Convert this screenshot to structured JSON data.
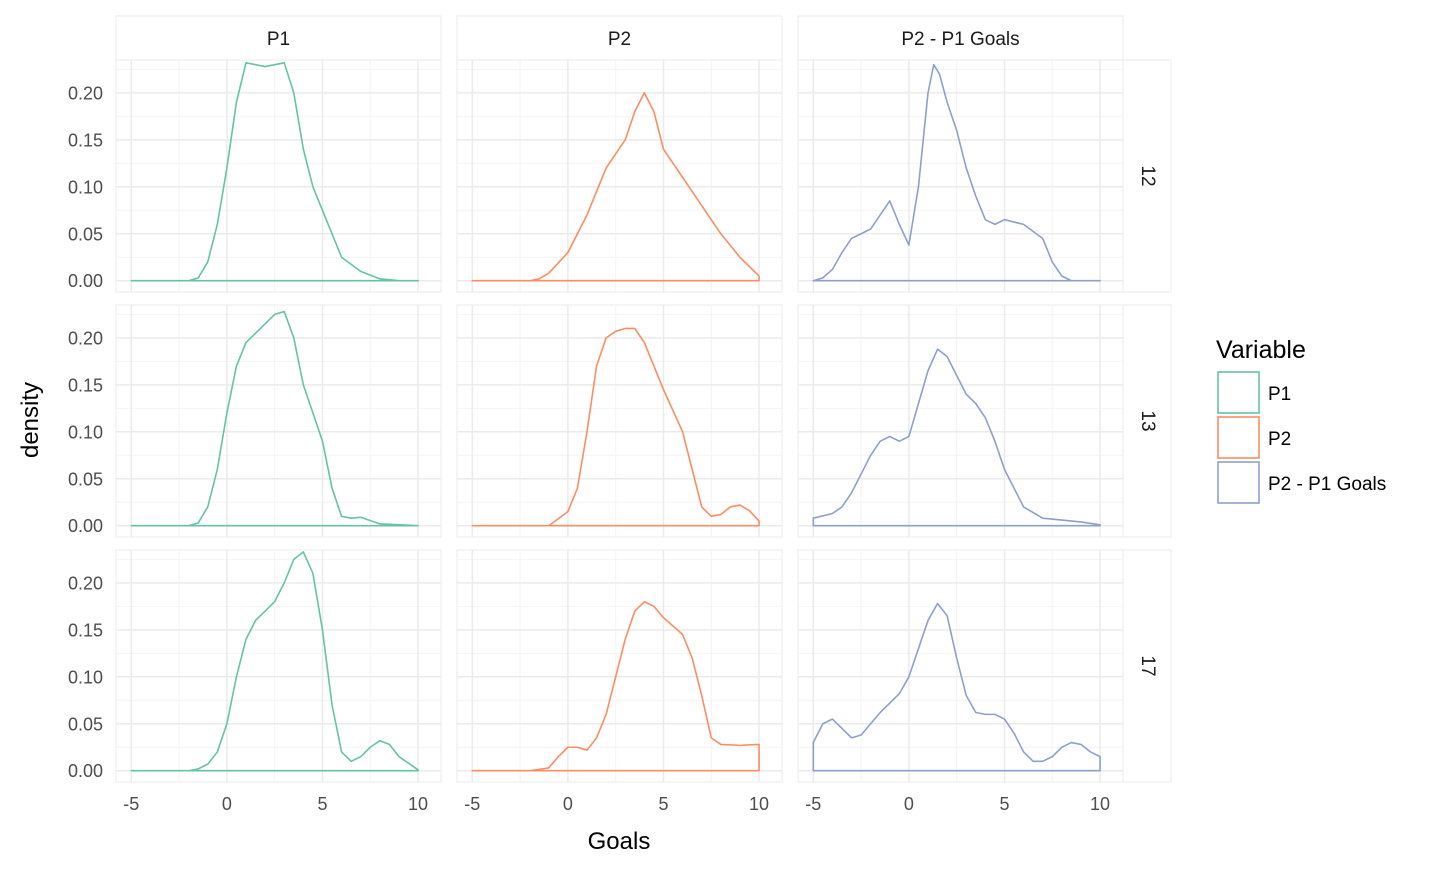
{
  "chart_data": {
    "type": "area",
    "facet_cols": [
      "P1",
      "P2",
      "P2 - P1 Goals"
    ],
    "facet_rows": [
      "12",
      "13",
      "17"
    ],
    "xlabel": "Goals",
    "ylabel": "density",
    "xlim": [
      -5.8,
      11.2
    ],
    "ylim": [
      -0.012,
      0.235
    ],
    "xticks": [
      -5,
      0,
      5,
      10
    ],
    "xtick_labels": [
      "-5",
      "0",
      "5",
      "10"
    ],
    "yticks": [
      0,
      0.05,
      0.1,
      0.15,
      0.2
    ],
    "ytick_labels": [
      "0.00",
      "0.05",
      "0.10",
      "0.15",
      "0.20"
    ],
    "grid": true,
    "legend": {
      "title": "Variable",
      "position": "right",
      "entries": [
        {
          "label": "P1",
          "color": "#66c2a5"
        },
        {
          "label": "P2",
          "color": "#fc8d62"
        },
        {
          "label": "P2 - P1 Goals",
          "color": "#8da0cb"
        }
      ]
    },
    "panels": [
      {
        "row": "12",
        "col": "P1",
        "color": "#66c2a5",
        "x_range": [
          -5,
          10
        ],
        "curve": [
          [
            -5,
            0
          ],
          [
            -2,
            0
          ],
          [
            -1.5,
            0.003
          ],
          [
            -1,
            0.02
          ],
          [
            -0.5,
            0.06
          ],
          [
            0,
            0.12
          ],
          [
            0.5,
            0.19
          ],
          [
            1,
            0.232
          ],
          [
            1.5,
            0.23
          ],
          [
            2,
            0.228
          ],
          [
            2.5,
            0.23
          ],
          [
            3,
            0.232
          ],
          [
            3.5,
            0.2
          ],
          [
            4,
            0.14
          ],
          [
            4.5,
            0.1
          ],
          [
            5,
            0.075
          ],
          [
            5.5,
            0.05
          ],
          [
            6,
            0.025
          ],
          [
            7,
            0.01
          ],
          [
            8,
            0.002
          ],
          [
            9,
            0
          ],
          [
            10,
            0
          ]
        ]
      },
      {
        "row": "12",
        "col": "P2",
        "color": "#fc8d62",
        "x_range": [
          -5,
          10
        ],
        "curve": [
          [
            -5,
            0
          ],
          [
            -2,
            0
          ],
          [
            -1.5,
            0.002
          ],
          [
            -1,
            0.008
          ],
          [
            0,
            0.03
          ],
          [
            1,
            0.07
          ],
          [
            2,
            0.12
          ],
          [
            3,
            0.15
          ],
          [
            3.5,
            0.18
          ],
          [
            4,
            0.2
          ],
          [
            4.5,
            0.18
          ],
          [
            5,
            0.14
          ],
          [
            6,
            0.11
          ],
          [
            7,
            0.08
          ],
          [
            8,
            0.05
          ],
          [
            9,
            0.025
          ],
          [
            10,
            0.005
          ]
        ]
      },
      {
        "row": "12",
        "col": "P2 - P1 Goals",
        "color": "#8da0cb",
        "x_range": [
          -5,
          10
        ],
        "curve": [
          [
            -5,
            0
          ],
          [
            -4.5,
            0.003
          ],
          [
            -4,
            0.012
          ],
          [
            -3.5,
            0.03
          ],
          [
            -3,
            0.045
          ],
          [
            -2.5,
            0.05
          ],
          [
            -2,
            0.055
          ],
          [
            -1.5,
            0.07
          ],
          [
            -1,
            0.085
          ],
          [
            -0.5,
            0.06
          ],
          [
            0,
            0.038
          ],
          [
            0.5,
            0.1
          ],
          [
            1,
            0.2
          ],
          [
            1.3,
            0.23
          ],
          [
            1.6,
            0.22
          ],
          [
            2,
            0.19
          ],
          [
            2.5,
            0.16
          ],
          [
            3,
            0.12
          ],
          [
            3.5,
            0.09
          ],
          [
            4,
            0.065
          ],
          [
            4.5,
            0.06
          ],
          [
            5,
            0.065
          ],
          [
            6,
            0.06
          ],
          [
            7,
            0.045
          ],
          [
            7.5,
            0.02
          ],
          [
            8,
            0.005
          ],
          [
            8.5,
            0
          ],
          [
            10,
            0
          ]
        ]
      },
      {
        "row": "13",
        "col": "P1",
        "color": "#66c2a5",
        "x_range": [
          -5,
          10
        ],
        "curve": [
          [
            -5,
            0
          ],
          [
            -2,
            0
          ],
          [
            -1.5,
            0.003
          ],
          [
            -1,
            0.02
          ],
          [
            -0.5,
            0.06
          ],
          [
            0,
            0.12
          ],
          [
            0.5,
            0.17
          ],
          [
            1,
            0.195
          ],
          [
            1.5,
            0.205
          ],
          [
            2,
            0.215
          ],
          [
            2.5,
            0.225
          ],
          [
            3,
            0.228
          ],
          [
            3.5,
            0.2
          ],
          [
            4,
            0.15
          ],
          [
            4.5,
            0.12
          ],
          [
            5,
            0.09
          ],
          [
            5.5,
            0.04
          ],
          [
            6,
            0.01
          ],
          [
            6.5,
            0.008
          ],
          [
            7,
            0.009
          ],
          [
            8,
            0.002
          ],
          [
            10,
            0
          ]
        ]
      },
      {
        "row": "13",
        "col": "P2",
        "color": "#fc8d62",
        "x_range": [
          -5,
          10
        ],
        "curve": [
          [
            -5,
            0
          ],
          [
            -1,
            0
          ],
          [
            0,
            0.015
          ],
          [
            0.5,
            0.04
          ],
          [
            1,
            0.1
          ],
          [
            1.5,
            0.17
          ],
          [
            2,
            0.2
          ],
          [
            2.5,
            0.207
          ],
          [
            3,
            0.21
          ],
          [
            3.5,
            0.21
          ],
          [
            4,
            0.195
          ],
          [
            4.5,
            0.17
          ],
          [
            5,
            0.145
          ],
          [
            6,
            0.1
          ],
          [
            6.5,
            0.06
          ],
          [
            7,
            0.02
          ],
          [
            7.5,
            0.01
          ],
          [
            8,
            0.012
          ],
          [
            8.5,
            0.02
          ],
          [
            9,
            0.022
          ],
          [
            9.5,
            0.016
          ],
          [
            10,
            0.005
          ]
        ]
      },
      {
        "row": "13",
        "col": "P2 - P1 Goals",
        "color": "#8da0cb",
        "x_range": [
          -5,
          10
        ],
        "curve": [
          [
            -5,
            0.008
          ],
          [
            -4,
            0.013
          ],
          [
            -3.5,
            0.02
          ],
          [
            -3,
            0.035
          ],
          [
            -2.5,
            0.055
          ],
          [
            -2,
            0.075
          ],
          [
            -1.5,
            0.09
          ],
          [
            -1,
            0.095
          ],
          [
            -0.5,
            0.09
          ],
          [
            0,
            0.095
          ],
          [
            0.5,
            0.13
          ],
          [
            1,
            0.165
          ],
          [
            1.5,
            0.188
          ],
          [
            2,
            0.18
          ],
          [
            2.5,
            0.16
          ],
          [
            3,
            0.14
          ],
          [
            3.5,
            0.13
          ],
          [
            4,
            0.115
          ],
          [
            4.5,
            0.09
          ],
          [
            5,
            0.06
          ],
          [
            6,
            0.02
          ],
          [
            7,
            0.008
          ],
          [
            8,
            0.006
          ],
          [
            9,
            0.004
          ],
          [
            10,
            0.001
          ]
        ]
      },
      {
        "row": "17",
        "col": "P1",
        "color": "#66c2a5",
        "x_range": [
          -5,
          10
        ],
        "curve": [
          [
            -5,
            0
          ],
          [
            -2,
            0
          ],
          [
            -1.5,
            0.002
          ],
          [
            -1,
            0.007
          ],
          [
            -0.5,
            0.02
          ],
          [
            0,
            0.05
          ],
          [
            0.5,
            0.1
          ],
          [
            1,
            0.14
          ],
          [
            1.5,
            0.16
          ],
          [
            2,
            0.17
          ],
          [
            2.5,
            0.18
          ],
          [
            3,
            0.2
          ],
          [
            3.5,
            0.225
          ],
          [
            4,
            0.233
          ],
          [
            4.5,
            0.21
          ],
          [
            5,
            0.15
          ],
          [
            5.5,
            0.07
          ],
          [
            6,
            0.02
          ],
          [
            6.5,
            0.01
          ],
          [
            7,
            0.015
          ],
          [
            7.5,
            0.025
          ],
          [
            8,
            0.032
          ],
          [
            8.5,
            0.028
          ],
          [
            9,
            0.015
          ],
          [
            10,
            0.001
          ]
        ]
      },
      {
        "row": "17",
        "col": "P2",
        "color": "#fc8d62",
        "x_range": [
          -5,
          10
        ],
        "curve": [
          [
            -5,
            0
          ],
          [
            -2,
            0
          ],
          [
            -1,
            0.003
          ],
          [
            -0.5,
            0.015
          ],
          [
            0,
            0.025
          ],
          [
            0.5,
            0.025
          ],
          [
            1,
            0.022
          ],
          [
            1.5,
            0.035
          ],
          [
            2,
            0.06
          ],
          [
            2.5,
            0.1
          ],
          [
            3,
            0.14
          ],
          [
            3.5,
            0.17
          ],
          [
            4,
            0.18
          ],
          [
            4.5,
            0.175
          ],
          [
            5,
            0.163
          ],
          [
            6,
            0.145
          ],
          [
            6.5,
            0.12
          ],
          [
            7,
            0.08
          ],
          [
            7.5,
            0.035
          ],
          [
            8,
            0.028
          ],
          [
            9,
            0.027
          ],
          [
            10,
            0.028
          ]
        ]
      },
      {
        "row": "17",
        "col": "P2 - P1 Goals",
        "color": "#8da0cb",
        "x_range": [
          -5,
          10
        ],
        "curve": [
          [
            -5,
            0.03
          ],
          [
            -4.5,
            0.05
          ],
          [
            -4,
            0.055
          ],
          [
            -3.5,
            0.045
          ],
          [
            -3,
            0.035
          ],
          [
            -2.5,
            0.038
          ],
          [
            -2,
            0.05
          ],
          [
            -1.5,
            0.062
          ],
          [
            -1,
            0.072
          ],
          [
            -0.5,
            0.082
          ],
          [
            0,
            0.1
          ],
          [
            0.5,
            0.13
          ],
          [
            1,
            0.16
          ],
          [
            1.5,
            0.178
          ],
          [
            2,
            0.165
          ],
          [
            2.5,
            0.12
          ],
          [
            3,
            0.08
          ],
          [
            3.5,
            0.062
          ],
          [
            4,
            0.06
          ],
          [
            4.5,
            0.06
          ],
          [
            5,
            0.055
          ],
          [
            5.5,
            0.04
          ],
          [
            6,
            0.02
          ],
          [
            6.5,
            0.01
          ],
          [
            7,
            0.01
          ],
          [
            7.5,
            0.015
          ],
          [
            8,
            0.025
          ],
          [
            8.5,
            0.03
          ],
          [
            9,
            0.028
          ],
          [
            9.5,
            0.02
          ],
          [
            10,
            0.015
          ]
        ]
      }
    ]
  }
}
